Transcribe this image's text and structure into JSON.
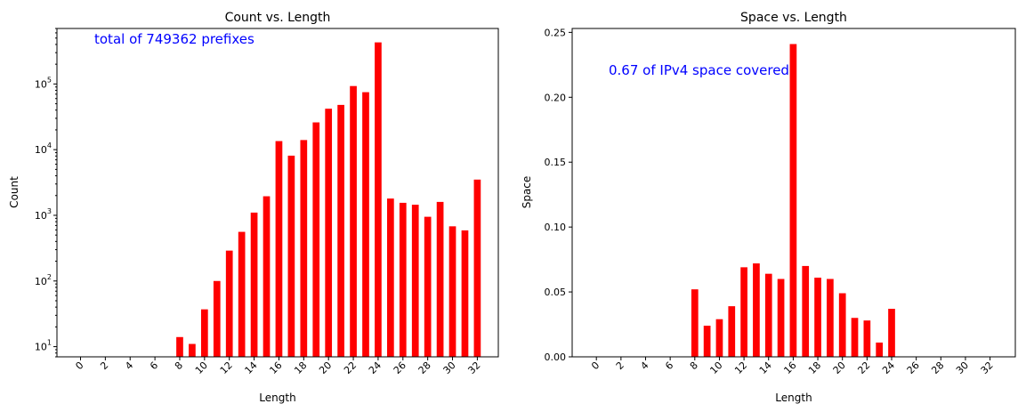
{
  "chart_data": [
    {
      "type": "bar",
      "title": "Count vs. Length",
      "xlabel": "Length",
      "ylabel": "Count",
      "yscale": "log",
      "ylim": [
        7,
        700000
      ],
      "y_ticks": [
        {
          "base": "10",
          "exp": "1",
          "value": 10
        },
        {
          "base": "10",
          "exp": "2",
          "value": 100
        },
        {
          "base": "10",
          "exp": "3",
          "value": 1000
        },
        {
          "base": "10",
          "exp": "4",
          "value": 10000
        },
        {
          "base": "10",
          "exp": "5",
          "value": 100000
        }
      ],
      "x_ticks": [
        "0",
        "2",
        "4",
        "6",
        "8",
        "10",
        "12",
        "14",
        "16",
        "18",
        "20",
        "22",
        "24",
        "26",
        "28",
        "30",
        "32"
      ],
      "x": [
        8,
        9,
        10,
        11,
        12,
        13,
        14,
        15,
        16,
        17,
        18,
        19,
        20,
        21,
        22,
        23,
        24,
        25,
        26,
        27,
        28,
        29,
        30,
        31,
        32
      ],
      "values": [
        14,
        11,
        37,
        100,
        290,
        560,
        1100,
        1950,
        13500,
        8100,
        14000,
        26000,
        42000,
        48000,
        93000,
        75000,
        430000,
        1800,
        1550,
        1450,
        950,
        1600,
        680,
        590,
        3500
      ],
      "bar_color": "#ff0000",
      "annotation": "total of 749362 prefixes",
      "annotation_color": "#0000ff"
    },
    {
      "type": "bar",
      "title": "Space vs. Length",
      "xlabel": "Length",
      "ylabel": "Space",
      "yscale": "linear",
      "ylim": [
        0,
        0.253
      ],
      "y_ticks": [
        "0.00",
        "0.05",
        "0.10",
        "0.15",
        "0.20",
        "0.25"
      ],
      "x_ticks": [
        "0",
        "2",
        "4",
        "6",
        "8",
        "10",
        "12",
        "14",
        "16",
        "18",
        "20",
        "22",
        "24",
        "26",
        "28",
        "30",
        "32"
      ],
      "x": [
        8,
        9,
        10,
        11,
        12,
        13,
        14,
        15,
        16,
        17,
        18,
        19,
        20,
        21,
        22,
        23,
        24
      ],
      "values": [
        0.052,
        0.024,
        0.029,
        0.039,
        0.069,
        0.072,
        0.064,
        0.06,
        0.241,
        0.07,
        0.061,
        0.06,
        0.049,
        0.03,
        0.028,
        0.011,
        0.037
      ],
      "bar_color": "#ff0000",
      "annotation": "0.67 of IPv4 space covered",
      "annotation_color": "#0000ff"
    }
  ]
}
